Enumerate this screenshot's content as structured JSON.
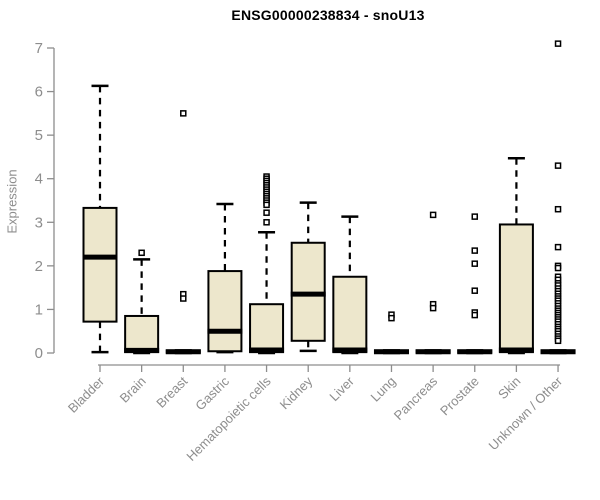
{
  "chart_data": {
    "type": "boxplot",
    "title": "ENSG00000238834 - snoU13",
    "ylabel": "Expression",
    "xlabel": "",
    "ylim": [
      0,
      7
    ],
    "yticks": [
      0,
      1,
      2,
      3,
      4,
      5,
      6,
      7
    ],
    "grid": false,
    "box_fill_color": "#EDE7CC",
    "box_line_color": "#000000",
    "axis_color": "#8d8d8d",
    "outlier_marker": "open-square",
    "categories": [
      "Bladder",
      "Brain",
      "Breast",
      "Gastric",
      "Hematopoietic cells",
      "Kidney",
      "Liver",
      "Lung",
      "Pancreas",
      "Prostate",
      "Skin",
      "Unknown / Other"
    ],
    "series": [
      {
        "category": "Bladder",
        "whisker_low": 0.02,
        "q1": 0.72,
        "median": 2.2,
        "q3": 3.33,
        "whisker_high": 6.13,
        "outliers": []
      },
      {
        "category": "Brain",
        "whisker_low": 0.0,
        "q1": 0.02,
        "median": 0.06,
        "q3": 0.85,
        "whisker_high": 2.15,
        "outliers": [
          2.3
        ]
      },
      {
        "category": "Breast",
        "whisker_low": 0.0,
        "q1": 0.01,
        "median": 0.03,
        "q3": 0.06,
        "whisker_high": 0.06,
        "outliers": [
          5.5,
          1.35,
          1.25
        ]
      },
      {
        "category": "Gastric",
        "whisker_low": 0.02,
        "q1": 0.04,
        "median": 0.5,
        "q3": 1.88,
        "whisker_high": 3.42,
        "outliers": []
      },
      {
        "category": "Hematopoietic cells",
        "whisker_low": 0.0,
        "q1": 0.02,
        "median": 0.07,
        "q3": 1.12,
        "whisker_high": 2.77,
        "outliers": [
          4.05,
          4.0,
          3.95,
          3.9,
          3.85,
          3.8,
          3.75,
          3.7,
          3.65,
          3.6,
          3.55,
          3.5,
          3.45,
          3.4,
          3.22,
          3.0
        ]
      },
      {
        "category": "Kidney",
        "whisker_low": 0.05,
        "q1": 0.28,
        "median": 1.35,
        "q3": 2.53,
        "whisker_high": 3.45,
        "outliers": []
      },
      {
        "category": "Liver",
        "whisker_low": 0.0,
        "q1": 0.02,
        "median": 0.07,
        "q3": 1.75,
        "whisker_high": 3.13,
        "outliers": []
      },
      {
        "category": "Lung",
        "whisker_low": 0.0,
        "q1": 0.01,
        "median": 0.03,
        "q3": 0.06,
        "whisker_high": 0.06,
        "outliers": [
          0.88,
          0.8
        ]
      },
      {
        "category": "Pancreas",
        "whisker_low": 0.0,
        "q1": 0.01,
        "median": 0.03,
        "q3": 0.06,
        "whisker_high": 0.06,
        "outliers": [
          3.17,
          1.12,
          1.03
        ]
      },
      {
        "category": "Prostate",
        "whisker_low": 0.0,
        "q1": 0.01,
        "median": 0.03,
        "q3": 0.06,
        "whisker_high": 0.06,
        "outliers": [
          3.13,
          2.35,
          2.05,
          1.43,
          0.93,
          0.87
        ]
      },
      {
        "category": "Skin",
        "whisker_low": 0.0,
        "q1": 0.02,
        "median": 0.07,
        "q3": 2.95,
        "whisker_high": 4.47,
        "outliers": []
      },
      {
        "category": "Unknown / Other",
        "whisker_low": 0.0,
        "q1": 0.01,
        "median": 0.03,
        "q3": 0.06,
        "whisker_high": 0.06,
        "outliers": [
          7.1,
          4.3,
          3.3,
          2.43,
          2.0,
          1.95,
          1.75,
          1.68,
          1.6,
          1.55,
          1.48,
          1.42,
          1.36,
          1.3,
          1.25,
          1.2,
          1.14,
          1.08,
          1.02,
          0.97,
          0.92,
          0.87,
          0.82,
          0.77,
          0.72,
          0.66,
          0.6,
          0.55,
          0.5,
          0.44,
          0.38,
          0.33,
          0.28
        ]
      }
    ]
  }
}
